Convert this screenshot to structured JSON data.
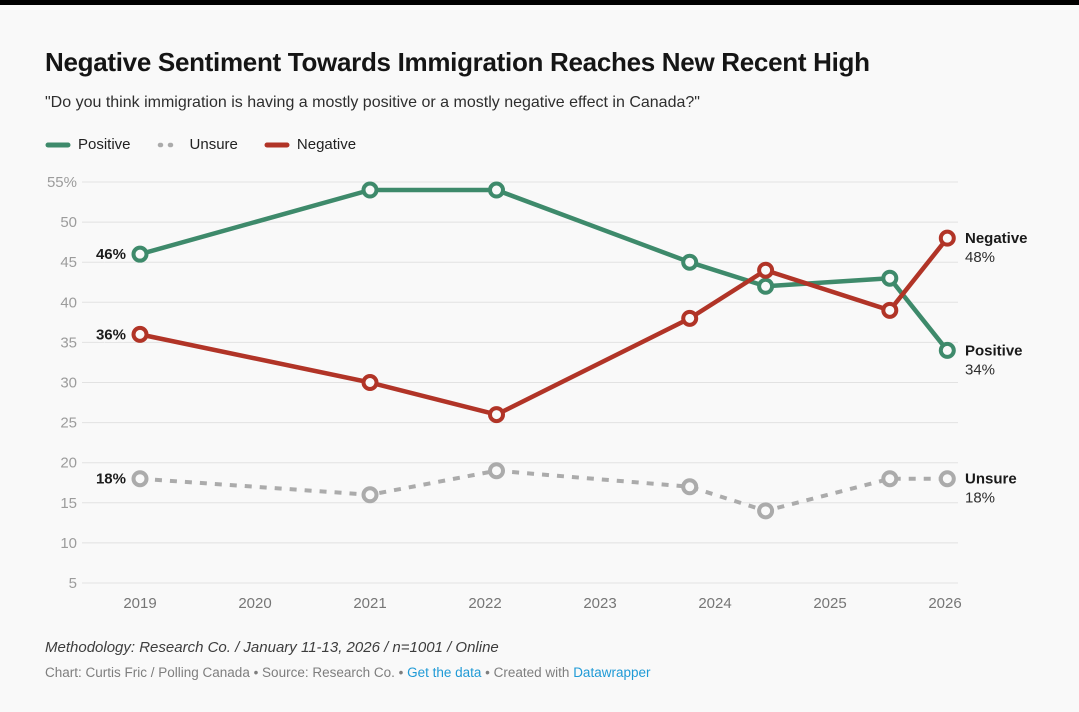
{
  "header": {
    "title": "Negative Sentiment Towards Immigration Reaches New Recent High",
    "subtitle": "\"Do you think immigration is having a mostly positive or a mostly negative effect in Canada?\""
  },
  "legend": [
    {
      "label": "Positive",
      "color": "#3e8a6b",
      "dashed": false
    },
    {
      "label": "Unsure",
      "color": "#ababab",
      "dashed": true
    },
    {
      "label": "Negative",
      "color": "#b13427",
      "dashed": false
    }
  ],
  "chart_data": {
    "type": "line",
    "title": "Negative Sentiment Towards Immigration Reaches New Recent High",
    "x": [
      2019,
      2021,
      2022.1,
      2023.78,
      2024.44,
      2025.52,
      2026.02
    ],
    "x_ticks": [
      2019,
      2020,
      2021,
      2022,
      2023,
      2024,
      2025,
      2026
    ],
    "y_ticks": [
      5,
      10,
      15,
      20,
      25,
      30,
      35,
      40,
      45,
      50,
      55
    ],
    "y_top_tick_suffix": "%",
    "ylim": [
      5,
      55
    ],
    "grid": "horizontal",
    "legend_position": "top-left",
    "series": [
      {
        "name": "Positive",
        "color": "#3e8a6b",
        "dashed": false,
        "values": [
          46,
          54,
          54,
          45,
          42,
          43,
          34
        ],
        "start_label": "46%",
        "end_name": "Positive",
        "end_value": "34%"
      },
      {
        "name": "Unsure",
        "color": "#ababab",
        "dashed": true,
        "values": [
          18,
          16,
          19,
          17,
          14,
          18,
          18
        ],
        "start_label": "18%",
        "end_name": "Unsure",
        "end_value": "18%"
      },
      {
        "name": "Negative",
        "color": "#b13427",
        "dashed": false,
        "values": [
          36,
          30,
          26,
          38,
          44,
          39,
          48
        ],
        "start_label": "36%",
        "end_name": "Negative",
        "end_value": "48%"
      }
    ]
  },
  "footer": {
    "methodology": "Methodology: Research Co. / January 11-13, 2026 / n=1001 / Online",
    "credit_prefix": "Chart: Curtis Fric / Polling Canada • Source: Research Co. • ",
    "get_data_link": "Get the data",
    "credit_mid": " • Created with ",
    "datawrapper_link": "Datawrapper"
  }
}
